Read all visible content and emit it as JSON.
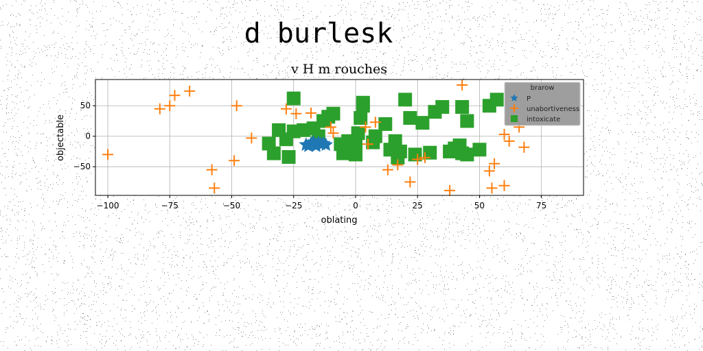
{
  "figure": {
    "suptitle": "d burlesk"
  },
  "chart_data": {
    "type": "scatter",
    "title": "v H m rouches",
    "xlabel": "oblating",
    "ylabel": "objectable",
    "xlim": [
      -105,
      92
    ],
    "ylim": [
      -97,
      93
    ],
    "xticks": [
      -100,
      -75,
      -50,
      -25,
      0,
      25,
      50,
      75
    ],
    "yticks": [
      -50,
      0,
      50
    ],
    "xtick_labels": [
      "−100",
      "−75",
      "−50",
      "−25",
      "0",
      "25",
      "50",
      "75"
    ],
    "ytick_labels": [
      "−50",
      "0",
      "50"
    ],
    "grid": true,
    "legend": {
      "title": "brarow",
      "placement": "top-right"
    },
    "series": [
      {
        "name": "P",
        "marker": "star",
        "color": "#1f77b4",
        "points": [
          [
            -20,
            -14
          ],
          [
            -18,
            -12
          ],
          [
            -16,
            -16
          ],
          [
            -14,
            -13
          ],
          [
            -12,
            -14
          ],
          [
            -17,
            -10
          ],
          [
            -15,
            -11
          ],
          [
            -19,
            -16
          ],
          [
            -13,
            -12
          ],
          [
            -16,
            -14
          ]
        ]
      },
      {
        "name": "unabortiveness",
        "marker": "plus",
        "color": "#ff7f0e",
        "points": [
          [
            -100,
            -30
          ],
          [
            -79,
            45
          ],
          [
            -75,
            50
          ],
          [
            -73,
            67
          ],
          [
            -67,
            74
          ],
          [
            -58,
            -55
          ],
          [
            -57,
            -85
          ],
          [
            -49,
            -40
          ],
          [
            -48,
            50
          ],
          [
            -42,
            -3
          ],
          [
            -28,
            45
          ],
          [
            -24,
            37
          ],
          [
            -18,
            38
          ],
          [
            -10,
            15
          ],
          [
            -9,
            5
          ],
          [
            4,
            15
          ],
          [
            5,
            -13
          ],
          [
            8,
            23
          ],
          [
            13,
            -55
          ],
          [
            17,
            -47
          ],
          [
            22,
            -75
          ],
          [
            25,
            -38
          ],
          [
            28,
            -35
          ],
          [
            38,
            -89
          ],
          [
            43,
            84
          ],
          [
            54,
            -57
          ],
          [
            55,
            -85
          ],
          [
            56,
            -45
          ],
          [
            60,
            -81
          ],
          [
            60,
            3
          ],
          [
            62,
            -8
          ],
          [
            66,
            15
          ],
          [
            68,
            -18
          ]
        ]
      },
      {
        "name": "intoxicate",
        "marker": "square",
        "color": "#2ca02c",
        "points": [
          [
            -25,
            62
          ],
          [
            -35,
            -12
          ],
          [
            -33,
            -28
          ],
          [
            -31,
            10
          ],
          [
            -27,
            -34
          ],
          [
            -28,
            -5
          ],
          [
            -25,
            8
          ],
          [
            -21,
            10
          ],
          [
            -17,
            13
          ],
          [
            -15,
            0
          ],
          [
            -13,
            25
          ],
          [
            -11,
            32
          ],
          [
            -9,
            37
          ],
          [
            -6,
            -13
          ],
          [
            -5,
            -28
          ],
          [
            -3,
            -8
          ],
          [
            -2,
            -26
          ],
          [
            0,
            -23
          ],
          [
            0,
            -30
          ],
          [
            0,
            -10
          ],
          [
            1,
            5
          ],
          [
            2,
            30
          ],
          [
            3,
            55
          ],
          [
            7,
            -10
          ],
          [
            8,
            0
          ],
          [
            3,
            50
          ],
          [
            12,
            20
          ],
          [
            14,
            -22
          ],
          [
            16,
            -8
          ],
          [
            17,
            -35
          ],
          [
            18,
            -25
          ],
          [
            20,
            60
          ],
          [
            22,
            30
          ],
          [
            24,
            -30
          ],
          [
            27,
            22
          ],
          [
            30,
            -27
          ],
          [
            32,
            40
          ],
          [
            35,
            48
          ],
          [
            38,
            -25
          ],
          [
            40,
            -20
          ],
          [
            42,
            -15
          ],
          [
            43,
            -28
          ],
          [
            45,
            -30
          ],
          [
            43,
            48
          ],
          [
            45,
            25
          ],
          [
            50,
            -22
          ],
          [
            54,
            50
          ],
          [
            57,
            60
          ]
        ]
      }
    ]
  }
}
